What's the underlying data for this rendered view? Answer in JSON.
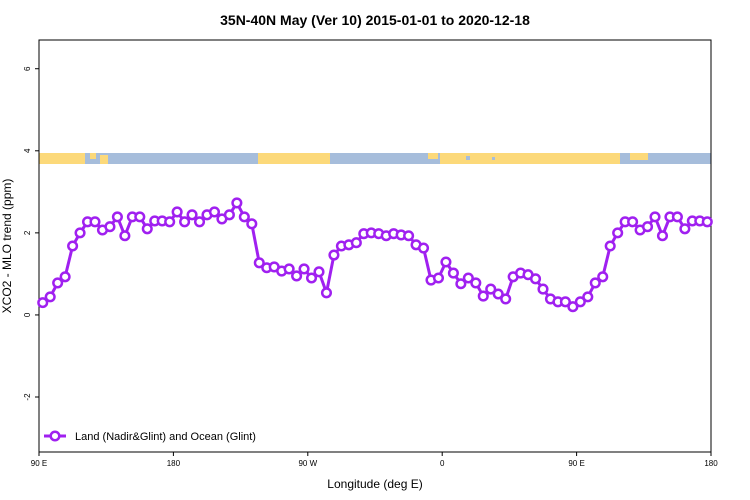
{
  "chart_data": {
    "type": "line",
    "title": "35N-40N May (Ver 10)   2015-01-01 to 2020-12-18",
    "xlabel": "Longitude (deg E)",
    "ylabel": "XCO2 - MLO trend (ppm)",
    "xlim": [
      90,
      540
    ],
    "ylim": [
      -3.34,
      6.7
    ],
    "xticks": [
      {
        "value": 90,
        "label": "90 E"
      },
      180,
      {
        "value": 270,
        "label": "90 W"
      },
      {
        "value": 360,
        "label": "0"
      },
      {
        "value": 450,
        "label": "90 E"
      },
      {
        "value": 540,
        "label": "180"
      }
    ],
    "yticks": [
      -2,
      0,
      2,
      4,
      6
    ],
    "legend": "bottom-left",
    "x": [
      92.5,
      97.5,
      102.5,
      107.5,
      112.5,
      117.5,
      122.5,
      127.5,
      132.5,
      137.5,
      142.5,
      147.5,
      152.5,
      157.5,
      162.5,
      167.5,
      172.5,
      177.5,
      182.5,
      187.5,
      192.5,
      197.5,
      202.5,
      207.5,
      212.5,
      217.5,
      222.5,
      227.5,
      232.5,
      237.5,
      242.5,
      247.5,
      252.5,
      257.5,
      262.5,
      267.5,
      272.5,
      277.5,
      282.5,
      287.5,
      292.5,
      297.5,
      302.5,
      307.5,
      312.5,
      317.5,
      322.5,
      327.5,
      332.5,
      337.5,
      342.5,
      347.5,
      352.5,
      357.5,
      362.5,
      367.5,
      372.5,
      377.5,
      382.5,
      387.5,
      392.5,
      397.5,
      402.5,
      407.5,
      412.5,
      417.5,
      422.5,
      427.5,
      432.5,
      437.5,
      442.5,
      447.5,
      452.5,
      457.5,
      462.5,
      467.5,
      472.5,
      477.5,
      482.5,
      487.5,
      492.5,
      497.5,
      502.5,
      507.5,
      512.5,
      517.5,
      522.5,
      527.5,
      532.5,
      537.5
    ],
    "series": [
      {
        "name": "Land (Nadir&Glint) and Ocean (Glint)",
        "color": "#a020f0",
        "values": [
          0.3,
          0.44,
          0.78,
          0.93,
          1.68,
          2.0,
          2.27,
          2.27,
          2.07,
          2.15,
          2.39,
          1.93,
          2.39,
          2.39,
          2.1,
          2.29,
          2.29,
          2.27,
          2.51,
          2.27,
          2.44,
          2.27,
          2.44,
          2.51,
          2.34,
          2.44,
          2.73,
          2.39,
          2.22,
          1.27,
          1.15,
          1.17,
          1.07,
          1.12,
          0.95,
          1.12,
          0.9,
          1.05,
          0.54,
          1.46,
          1.68,
          1.71,
          1.76,
          1.98,
          2.0,
          1.98,
          1.93,
          1.98,
          1.95,
          1.93,
          1.71,
          1.63,
          0.85,
          0.9,
          1.29,
          1.02,
          0.76,
          0.9,
          0.78,
          0.46,
          0.63,
          0.51,
          0.39,
          0.93,
          1.02,
          0.98,
          0.88,
          0.63,
          0.39,
          0.32,
          0.32,
          0.2,
          0.32,
          0.44,
          0.78,
          0.93,
          1.68,
          2.0,
          2.27,
          2.27,
          2.07,
          2.15,
          2.39,
          1.93,
          2.39,
          2.39,
          2.1,
          2.29,
          2.29,
          2.27
        ]
      }
    ]
  }
}
